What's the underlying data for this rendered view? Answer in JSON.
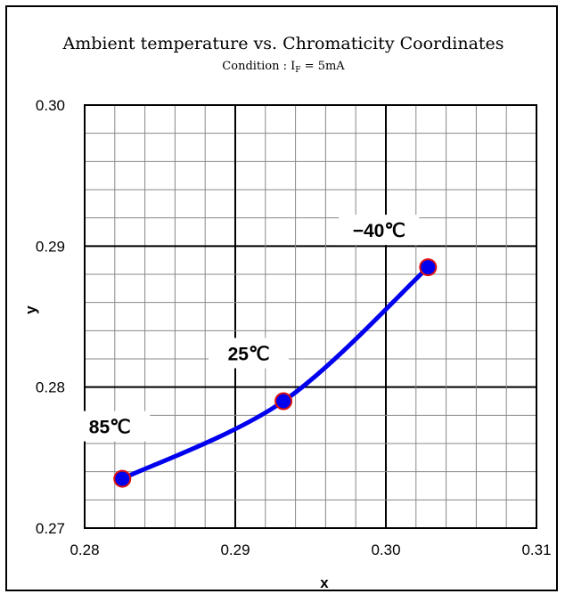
{
  "chart_data": {
    "type": "line",
    "title": "Ambient temperature vs. Chromaticity  Coordinates",
    "subtitle": {
      "prefix": "Condition : I",
      "subscript": "F",
      "suffix": " = 5mA"
    },
    "xlabel": "x",
    "ylabel": "y",
    "xlim": [
      0.28,
      0.31
    ],
    "ylim": [
      0.27,
      0.3
    ],
    "x_ticks": [
      "0.28",
      "0.29",
      "0.30",
      "0.31"
    ],
    "y_ticks": [
      "0.27",
      "0.28",
      "0.29",
      "0.30"
    ],
    "grid": true,
    "series": [
      {
        "points": [
          {
            "x": 0.2825,
            "y": 0.2735,
            "label": "85℃"
          },
          {
            "x": 0.2932,
            "y": 0.279,
            "label": "25℃"
          },
          {
            "x": 0.3028,
            "y": 0.2885,
            "label": "−40℃"
          }
        ]
      }
    ],
    "colors": {
      "line": "#0000ee",
      "marker_fill": "#0000ee",
      "marker_edge": "#dd1111",
      "grid_major": "#000000",
      "grid_minor": "#888888"
    }
  }
}
